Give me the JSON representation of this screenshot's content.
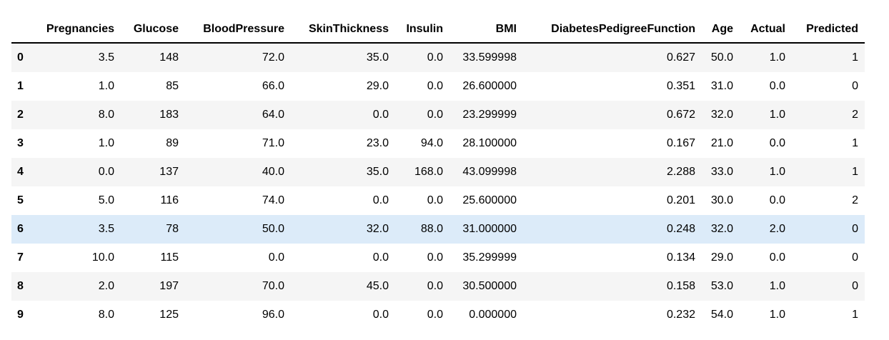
{
  "table": {
    "columns": [
      "",
      "Pregnancies",
      "Glucose",
      "BloodPressure",
      "SkinThickness",
      "Insulin",
      "BMI",
      "DiabetesPedigreeFunction",
      "Age",
      "Actual",
      "Predicted"
    ],
    "rows": [
      [
        "0",
        "3.5",
        "148",
        "72.0",
        "35.0",
        "0.0",
        "33.599998",
        "0.627",
        "50.0",
        "1.0",
        "1"
      ],
      [
        "1",
        "1.0",
        "85",
        "66.0",
        "29.0",
        "0.0",
        "26.600000",
        "0.351",
        "31.0",
        "0.0",
        "0"
      ],
      [
        "2",
        "8.0",
        "183",
        "64.0",
        "0.0",
        "0.0",
        "23.299999",
        "0.672",
        "32.0",
        "1.0",
        "2"
      ],
      [
        "3",
        "1.0",
        "89",
        "71.0",
        "23.0",
        "94.0",
        "28.100000",
        "0.167",
        "21.0",
        "0.0",
        "1"
      ],
      [
        "4",
        "0.0",
        "137",
        "40.0",
        "35.0",
        "168.0",
        "43.099998",
        "2.288",
        "33.0",
        "1.0",
        "1"
      ],
      [
        "5",
        "5.0",
        "116",
        "74.0",
        "0.0",
        "0.0",
        "25.600000",
        "0.201",
        "30.0",
        "0.0",
        "2"
      ],
      [
        "6",
        "3.5",
        "78",
        "50.0",
        "32.0",
        "88.0",
        "31.000000",
        "0.248",
        "32.0",
        "2.0",
        "0"
      ],
      [
        "7",
        "10.0",
        "115",
        "0.0",
        "0.0",
        "0.0",
        "35.299999",
        "0.134",
        "29.0",
        "0.0",
        "0"
      ],
      [
        "8",
        "2.0",
        "197",
        "70.0",
        "45.0",
        "0.0",
        "30.500000",
        "0.158",
        "53.0",
        "1.0",
        "0"
      ],
      [
        "9",
        "8.0",
        "125",
        "96.0",
        "0.0",
        "0.0",
        "0.000000",
        "0.232",
        "54.0",
        "1.0",
        "1"
      ]
    ],
    "highlighted_row_index": 6,
    "colors": {
      "odd_row": "#f5f5f5",
      "even_row": "#ffffff",
      "hover_row": "#dcebf9",
      "header_border": "#000000"
    }
  }
}
